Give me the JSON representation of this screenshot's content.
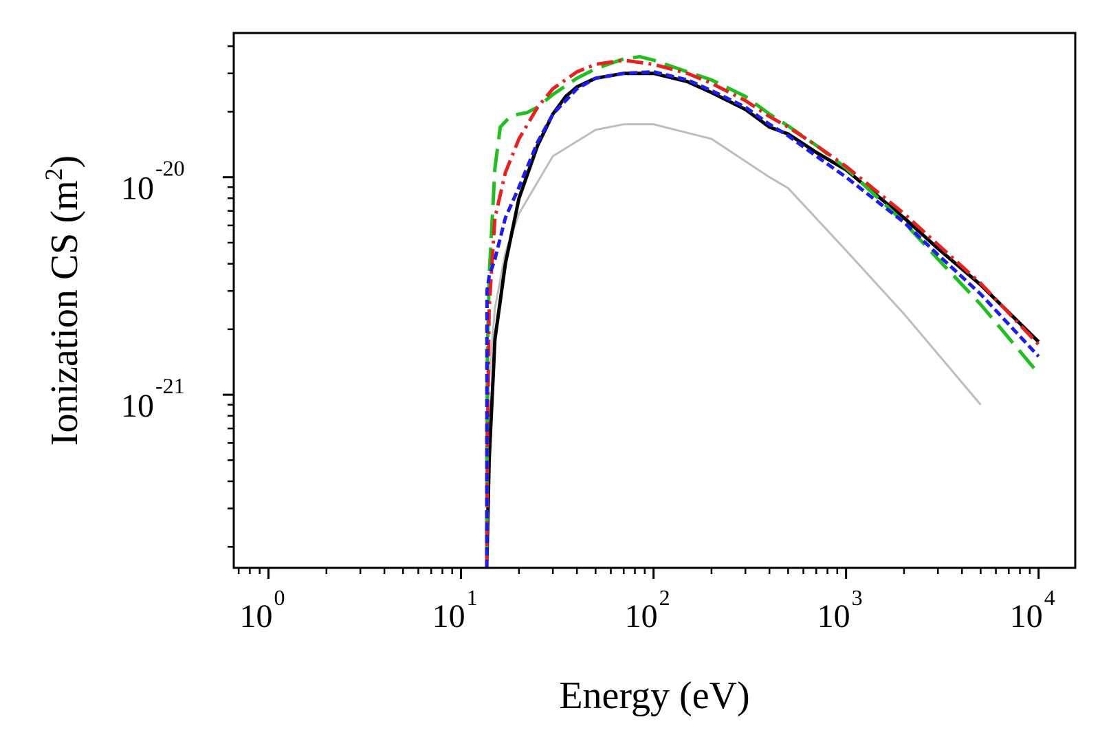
{
  "chart_data": {
    "type": "line",
    "title": "",
    "xlabel": "Energy (eV)",
    "ylabel": {
      "main": "Ionization CS (m",
      "sup": "2",
      "close": ")"
    },
    "xscale": "log",
    "yscale": "log",
    "xlim": [
      0.66,
      15500
    ],
    "ylim": [
      1.6e-22,
      4.6e-20
    ],
    "x_ticks": [
      {
        "value": 1,
        "base": "10",
        "exp": "0"
      },
      {
        "value": 10,
        "base": "10",
        "exp": "1"
      },
      {
        "value": 100,
        "base": "10",
        "exp": "2"
      },
      {
        "value": 1000,
        "base": "10",
        "exp": "3"
      },
      {
        "value": 10000,
        "base": "10",
        "exp": "4"
      }
    ],
    "y_ticks": [
      {
        "value": 1e-21,
        "base": "10",
        "exp": "-21"
      },
      {
        "value": 1e-20,
        "base": "10",
        "exp": "-20"
      }
    ],
    "grid": false,
    "legend": "none",
    "series": [
      {
        "name": "gray",
        "color": "#bdbdbd",
        "dash": "",
        "width": 3,
        "x": [
          13.5,
          14,
          15,
          17,
          20,
          30,
          50,
          70,
          100,
          200,
          400,
          500,
          1000,
          2000,
          5000
        ],
        "y": [
          2e-22,
          1.2e-21,
          2.5e-21,
          4.5e-21,
          6.8e-21,
          1.25e-20,
          1.65e-20,
          1.75e-20,
          1.75e-20,
          1.5e-20,
          1e-20,
          8.9e-21,
          4.6e-21,
          2.35e-21,
          9e-22
        ]
      },
      {
        "name": "black",
        "color": "#000000",
        "dash": "",
        "width": 5,
        "x": [
          13.6,
          14,
          15,
          17,
          20,
          25,
          30,
          35,
          40,
          50,
          70,
          100,
          150,
          200,
          300,
          400,
          500,
          700,
          1000,
          2000,
          3000,
          5000,
          10000
        ],
        "y": [
          1.6e-22,
          5e-22,
          1.8e-21,
          4e-21,
          8e-21,
          1.4e-20,
          1.95e-20,
          2.35e-20,
          2.6e-20,
          2.85e-20,
          3e-20,
          3e-20,
          2.75e-20,
          2.45e-20,
          2.05e-20,
          1.7e-20,
          1.58e-20,
          1.3e-20,
          1.08e-20,
          6.5e-21,
          4.7e-21,
          3.2e-21,
          1.75e-21
        ]
      },
      {
        "name": "green",
        "color": "#1fbf1f",
        "dash": "34 14",
        "width": 5,
        "x": [
          13.6,
          13.7,
          14,
          15,
          16,
          18,
          20,
          22,
          25,
          30,
          40,
          50,
          70,
          85,
          100,
          150,
          200,
          300,
          400,
          500,
          700,
          1000,
          2000,
          3000,
          5000,
          10000
        ],
        "y": [
          1.6e-22,
          1.5e-21,
          3.5e-21,
          1.1e-20,
          1.7e-20,
          1.9e-20,
          1.95e-20,
          1.98e-20,
          2.1e-20,
          2.4e-20,
          2.85e-20,
          3.15e-20,
          3.5e-20,
          3.58e-20,
          3.45e-20,
          3.05e-20,
          2.8e-20,
          2.35e-20,
          1.95e-20,
          1.72e-20,
          1.4e-20,
          1.1e-20,
          6.2e-21,
          4.2e-21,
          2.6e-21,
          1.25e-21
        ]
      },
      {
        "name": "red",
        "color": "#e82020",
        "dash": "24 8 4 8",
        "width": 5,
        "x": [
          13.6,
          13.7,
          14,
          15,
          17,
          20,
          25,
          30,
          40,
          50,
          70,
          100,
          150,
          200,
          300,
          400,
          500,
          700,
          1000,
          2000,
          3000,
          5000,
          10000
        ],
        "y": [
          1.6e-22,
          6e-22,
          2.5e-21,
          6.5e-21,
          1.05e-20,
          1.5e-20,
          2.1e-20,
          2.55e-20,
          3.05e-20,
          3.3e-20,
          3.45e-20,
          3.3e-20,
          3e-20,
          2.7e-20,
          2.25e-20,
          1.9e-20,
          1.7e-20,
          1.4e-20,
          1.12e-20,
          6.8e-21,
          4.9e-21,
          3.25e-21,
          1.7e-21
        ]
      },
      {
        "name": "blue",
        "color": "#1c1cf0",
        "dash": "12 6",
        "width": 5,
        "x": [
          13.6,
          13.65,
          14,
          15,
          17,
          20,
          25,
          30,
          40,
          50,
          70,
          100,
          150,
          200,
          300,
          400,
          500,
          700,
          1000,
          2000,
          3000,
          5000,
          10000
        ],
        "y": [
          1.6e-22,
          3e-21,
          3.5e-21,
          4.2e-21,
          6.5e-21,
          9e-21,
          1.45e-20,
          1.95e-20,
          2.55e-20,
          2.85e-20,
          3e-20,
          3.05e-20,
          2.8e-20,
          2.5e-20,
          2.1e-20,
          1.75e-20,
          1.55e-20,
          1.25e-20,
          1e-20,
          6.2e-21,
          4.4e-21,
          2.9e-21,
          1.5e-21
        ]
      }
    ]
  }
}
